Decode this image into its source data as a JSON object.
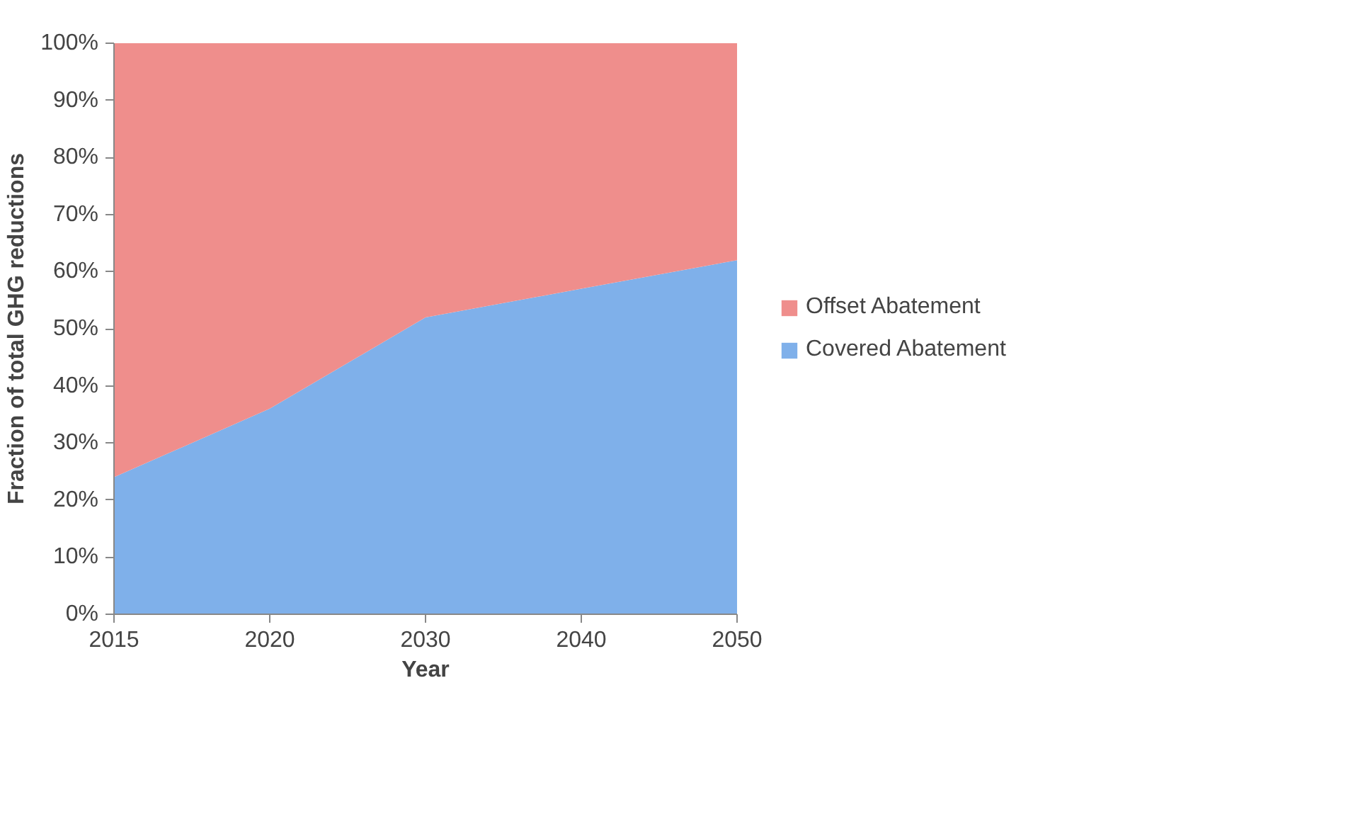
{
  "chart_data": {
    "type": "area",
    "stacked": true,
    "xlabel": "Year",
    "ylabel": "Fraction of total GHG reductions",
    "categories": [
      "2015",
      "2020",
      "2030",
      "2040",
      "2050"
    ],
    "series": [
      {
        "name": "Covered Abatement",
        "color": "#7fb0ea",
        "values": [
          24,
          36,
          52,
          57,
          62
        ]
      },
      {
        "name": "Offset Abatement",
        "color": "#ef8e8c",
        "values": [
          76,
          64,
          48,
          43,
          38
        ]
      }
    ],
    "ylim": [
      0,
      100
    ],
    "yticks": [
      {
        "value": 0,
        "label": "0%"
      },
      {
        "value": 10,
        "label": "10%"
      },
      {
        "value": 20,
        "label": "20%"
      },
      {
        "value": 30,
        "label": "30%"
      },
      {
        "value": 40,
        "label": "40%"
      },
      {
        "value": 50,
        "label": "50%"
      },
      {
        "value": 60,
        "label": "60%"
      },
      {
        "value": 70,
        "label": "70%"
      },
      {
        "value": 80,
        "label": "80%"
      },
      {
        "value": 90,
        "label": "90%"
      },
      {
        "value": 100,
        "label": "100%"
      }
    ],
    "grid": false,
    "legend": "right"
  }
}
